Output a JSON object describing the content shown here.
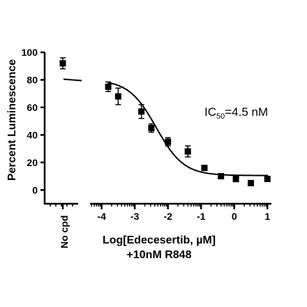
{
  "chart_data": {
    "type": "scatter",
    "ylabel": "Percent Luminescence",
    "xlabel_line1": "Log[Edecesertib, µM]",
    "xlabel_line2": "+10nM R848",
    "annotation": {
      "prefix": "IC",
      "sub": "50",
      "suffix": "=4.5 nM"
    },
    "ylim": [
      -10,
      100
    ],
    "xlim": [
      -4.35,
      1.1
    ],
    "y_ticks": [
      0,
      20,
      40,
      60,
      80,
      100
    ],
    "y_tick_labels": [
      "0",
      "20",
      "40",
      "60",
      "80",
      "100"
    ],
    "x_ticks": [
      -4,
      -3,
      -2,
      -1,
      0,
      1
    ],
    "x_tick_labels": [
      "-4",
      "-3",
      "-2",
      "-1",
      "0",
      "1"
    ],
    "no_cpd_label": "No cpd",
    "no_cpd_point": {
      "y": 92,
      "err": 4
    },
    "no_cpd_line_y": 80,
    "series": [
      {
        "marker": "square",
        "points": [
          {
            "x": -3.8,
            "y": 75,
            "err": 3.5
          },
          {
            "x": -3.5,
            "y": 68,
            "err": 6
          },
          {
            "x": -2.8,
            "y": 57,
            "err": 5
          },
          {
            "x": -2.5,
            "y": 45,
            "err": 3
          },
          {
            "x": -2.0,
            "y": 35,
            "err": 3
          },
          {
            "x": -1.4,
            "y": 28,
            "err": 4
          },
          {
            "x": -0.9,
            "y": 16,
            "err": 1.5
          },
          {
            "x": -0.4,
            "y": 10,
            "err": 1.5
          },
          {
            "x": 0.05,
            "y": 8,
            "err": 2
          },
          {
            "x": 0.5,
            "y": 5,
            "err": 1.5
          },
          {
            "x": 1.0,
            "y": 8,
            "err": 1.5
          }
        ]
      }
    ],
    "fit": {
      "top": 80,
      "bottom": 10.5,
      "logIC50": -2.35,
      "hill": 1.05
    }
  }
}
